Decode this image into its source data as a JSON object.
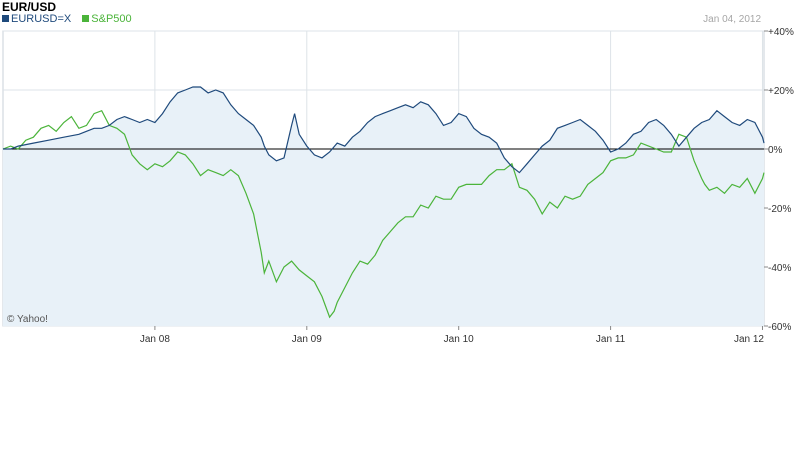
{
  "chart_data": {
    "type": "line",
    "title": "EUR/USD",
    "date_label": "Jan 04, 2012",
    "credit": "© Yahoo!",
    "colors": {
      "eurusd": "#1f4a7c",
      "sp500": "#4bb43a",
      "area": "#e8f1f8",
      "grid": "#dde3e8"
    },
    "series": [
      {
        "name": "EURUSD=X",
        "key": "eurusd",
        "x": [
          2007.0,
          2007.05,
          2007.1,
          2007.2,
          2007.3,
          2007.4,
          2007.5,
          2007.55,
          2007.6,
          2007.65,
          2007.7,
          2007.75,
          2007.8,
          2007.85,
          2007.9,
          2007.95,
          2008.0,
          2008.05,
          2008.1,
          2008.15,
          2008.2,
          2008.25,
          2008.3,
          2008.35,
          2008.4,
          2008.45,
          2008.5,
          2008.55,
          2008.6,
          2008.65,
          2008.7,
          2008.72,
          2008.75,
          2008.8,
          2008.85,
          2008.9,
          2008.92,
          2008.95,
          2009.0,
          2009.05,
          2009.1,
          2009.15,
          2009.2,
          2009.25,
          2009.3,
          2009.35,
          2009.4,
          2009.45,
          2009.5,
          2009.55,
          2009.6,
          2009.65,
          2009.7,
          2009.75,
          2009.8,
          2009.85,
          2009.9,
          2009.95,
          2010.0,
          2010.05,
          2010.1,
          2010.15,
          2010.2,
          2010.25,
          2010.3,
          2010.35,
          2010.4,
          2010.45,
          2010.5,
          2010.55,
          2010.6,
          2010.65,
          2010.7,
          2010.75,
          2010.8,
          2010.85,
          2010.9,
          2010.95,
          2011.0,
          2011.05,
          2011.1,
          2011.15,
          2011.2,
          2011.25,
          2011.3,
          2011.35,
          2011.4,
          2011.45,
          2011.5,
          2011.55,
          2011.6,
          2011.65,
          2011.7,
          2011.75,
          2011.8,
          2011.85,
          2011.9,
          2011.95,
          2012.0,
          2012.01
        ],
        "values": [
          0,
          0,
          1,
          2,
          3,
          4,
          5,
          6,
          7,
          7,
          8,
          10,
          11,
          10,
          9,
          10,
          9,
          12,
          16,
          19,
          20,
          21,
          21,
          19,
          20,
          19,
          15,
          12,
          10,
          8,
          4,
          1,
          -2,
          -4,
          -3,
          8,
          12,
          5,
          1,
          -2,
          -3,
          -1,
          2,
          1,
          4,
          6,
          9,
          11,
          12,
          13,
          14,
          15,
          14,
          16,
          15,
          12,
          8,
          9,
          12,
          11,
          7,
          5,
          4,
          2,
          -3,
          -6,
          -8,
          -5,
          -2,
          1,
          3,
          7,
          8,
          9,
          10,
          8,
          6,
          3,
          -1,
          0,
          2,
          5,
          6,
          9,
          10,
          8,
          5,
          1,
          4,
          7,
          9,
          10,
          13,
          11,
          9,
          8,
          10,
          9,
          4,
          2
        ]
      },
      {
        "name": "S&P500",
        "key": "sp500",
        "x": [
          2007.0,
          2007.05,
          2007.1,
          2007.15,
          2007.2,
          2007.25,
          2007.3,
          2007.35,
          2007.4,
          2007.45,
          2007.5,
          2007.55,
          2007.6,
          2007.65,
          2007.7,
          2007.75,
          2007.8,
          2007.85,
          2007.9,
          2007.95,
          2008.0,
          2008.05,
          2008.1,
          2008.15,
          2008.2,
          2008.25,
          2008.3,
          2008.35,
          2008.4,
          2008.45,
          2008.5,
          2008.55,
          2008.6,
          2008.65,
          2008.7,
          2008.72,
          2008.75,
          2008.8,
          2008.85,
          2008.9,
          2008.95,
          2009.0,
          2009.05,
          2009.1,
          2009.15,
          2009.18,
          2009.2,
          2009.25,
          2009.3,
          2009.35,
          2009.4,
          2009.45,
          2009.5,
          2009.55,
          2009.6,
          2009.65,
          2009.7,
          2009.75,
          2009.8,
          2009.85,
          2009.9,
          2009.95,
          2010.0,
          2010.05,
          2010.1,
          2010.15,
          2010.2,
          2010.25,
          2010.3,
          2010.35,
          2010.4,
          2010.45,
          2010.5,
          2010.55,
          2010.6,
          2010.65,
          2010.7,
          2010.75,
          2010.8,
          2010.85,
          2010.9,
          2010.95,
          2011.0,
          2011.05,
          2011.1,
          2011.15,
          2011.2,
          2011.25,
          2011.3,
          2011.35,
          2011.4,
          2011.45,
          2011.5,
          2011.55,
          2011.6,
          2011.62,
          2011.65,
          2011.7,
          2011.75,
          2011.8,
          2011.85,
          2011.9,
          2011.95,
          2012.0,
          2012.01
        ],
        "values": [
          0,
          1,
          0,
          3,
          4,
          7,
          8,
          6,
          9,
          11,
          7,
          8,
          12,
          13,
          8,
          7,
          5,
          -2,
          -5,
          -7,
          -5,
          -6,
          -4,
          -1,
          -2,
          -5,
          -9,
          -7,
          -8,
          -9,
          -7,
          -9,
          -15,
          -22,
          -35,
          -42,
          -38,
          -45,
          -40,
          -38,
          -41,
          -43,
          -45,
          -50,
          -57,
          -55,
          -52,
          -47,
          -42,
          -38,
          -39,
          -36,
          -31,
          -28,
          -25,
          -23,
          -23,
          -19,
          -20,
          -16,
          -17,
          -17,
          -13,
          -12,
          -12,
          -12,
          -9,
          -7,
          -7,
          -5,
          -13,
          -14,
          -17,
          -22,
          -18,
          -20,
          -16,
          -17,
          -16,
          -12,
          -10,
          -8,
          -4,
          -3,
          -3,
          -2,
          2,
          1,
          0,
          -1,
          -1,
          5,
          4,
          -4,
          -10,
          -12,
          -14,
          -13,
          -15,
          -12,
          -13,
          -10,
          -15,
          -10,
          -8
        ]
      }
    ],
    "xaxis": {
      "range": [
        2007.0,
        2012.01
      ],
      "ticks": [
        {
          "v": 2008.0,
          "label": "Jan 08"
        },
        {
          "v": 2009.0,
          "label": "Jan 09"
        },
        {
          "v": 2010.0,
          "label": "Jan 10"
        },
        {
          "v": 2011.0,
          "label": "Jan 11"
        },
        {
          "v": 2012.0,
          "label": "Jan 12"
        }
      ]
    },
    "yaxis": {
      "range": [
        -60,
        40
      ],
      "side": "right",
      "ticks": [
        {
          "v": 40,
          "label": "+40%"
        },
        {
          "v": 20,
          "label": "+20%"
        },
        {
          "v": 0,
          "label": "0%"
        },
        {
          "v": -20,
          "label": "-20%"
        },
        {
          "v": -40,
          "label": "-40%"
        },
        {
          "v": -60,
          "label": "-60%"
        }
      ]
    },
    "grid": true,
    "legend": "top-left"
  }
}
